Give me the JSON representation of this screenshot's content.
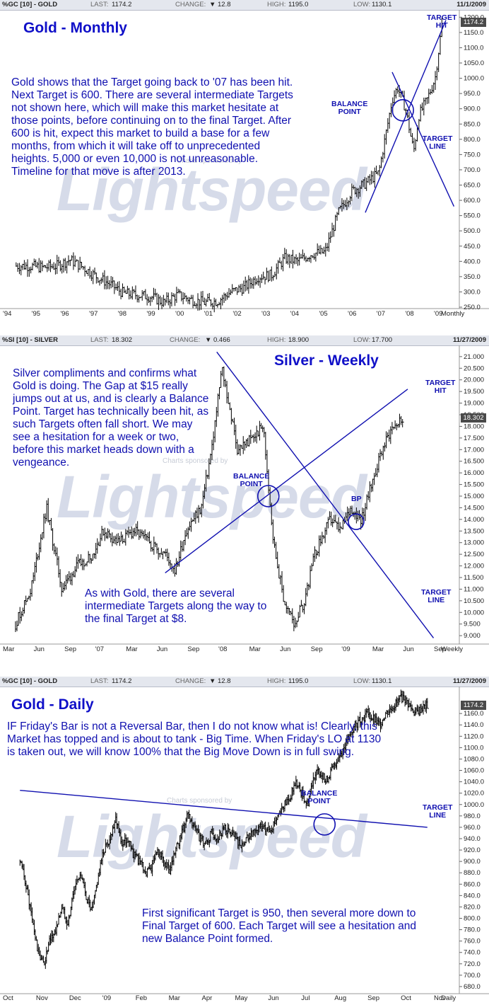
{
  "colors": {
    "annotation": "#1010b0",
    "title": "#1010c8",
    "header_bg": "#e4e7ee",
    "price_bar": "#000000",
    "watermark": "#d6dbe9"
  },
  "watermark": "Lightspeed",
  "watermark_sub": "Charts sponsored by",
  "panels": [
    {
      "id": "gold-monthly",
      "header": {
        "symbol": "%GC [10] - GOLD",
        "last_label": "LAST:",
        "last": "1174.2",
        "change_label": "CHANGE:",
        "change": "12.8",
        "high_label": "HIGH:",
        "high": "1195.0",
        "low_label": "LOW:",
        "low": "1130.1",
        "date": "11/1/2009"
      },
      "title": "Gold - Monthly",
      "note": "Gold shows that the Target going back to '07 has been hit.  Next Target is 600.  There are several intermediate Targets not shown here, which will make this market hesitate at those points, before continuing on to the final Target.  After 600 is hit, expect this market to build a base for a few months, from which it will take off to unprecedented heights.  5,000 or even 10,000 is not unreasonable.  Timeline for that move is after 2013.",
      "annotations": {
        "target_hit": "TARGET\nHIT",
        "balance_point": "BALANCE\nPOINT",
        "target_line": "TARGET\nLINE"
      },
      "last_box": "1174.2"
    },
    {
      "id": "silver-weekly",
      "header": {
        "symbol": "%SI [10] - SILVER",
        "last_label": "LAST:",
        "last": "18.302",
        "change_label": "CHANGE:",
        "change": "0.466",
        "high_label": "HIGH:",
        "high": "18.900",
        "low_label": "LOW:",
        "low": "17.700",
        "date": "11/27/2009"
      },
      "title": "Silver - Weekly",
      "note": "Silver compliments and  confirms what Gold is doing.  The Gap at $15 really jumps out at us, and is clearly a Balance Point.  Target has technically been hit, as such Targets often fall short.  We may see a hesitation for a week or two, before this market heads down with a vengeance.",
      "note2": "As with Gold, there are several intermediate Targets along the way to the final Target at $8.",
      "annotations": {
        "target_hit": "TARGET\nHIT",
        "balance_point": "BALANCE\nPOINT",
        "bp": "BP",
        "target_line": "TARGET\nLINE"
      },
      "last_box": "18.302"
    },
    {
      "id": "gold-daily",
      "header": {
        "symbol": "%GC [10] - GOLD",
        "last_label": "LAST:",
        "last": "1174.2",
        "change_label": "CHANGE:",
        "change": "12.8",
        "high_label": "HIGH:",
        "high": "1195.0",
        "low_label": "LOW:",
        "low": "1130.1",
        "date": "11/27/2009"
      },
      "title": "Gold - Daily",
      "note": "IF Friday's Bar is not a Reversal Bar, then I do not know what is! Clearly, this Market has topped and is about to tank - Big Time. When Friday's LO at 1130 is taken out, we will know 100% that the Big Move Down is in full swing.",
      "note2": "First significant Target is 950, then several more down to Final Target of 600.  Each Target will see a hesitation and new Balance Point formed.",
      "annotations": {
        "balance_point": "BALANCE\nPOINT",
        "target_line": "TARGET\nLINE"
      },
      "last_box": "1174.2"
    }
  ],
  "chart_data": [
    {
      "type": "bar",
      "title": "Gold - Monthly",
      "periodicity": "Monthly",
      "x_ticks": [
        "'94",
        "'95",
        "'96",
        "'97",
        "'98",
        "'99",
        "'00",
        "'01",
        "'02",
        "'03",
        "'04",
        "'05",
        "'06",
        "'07",
        "'08",
        "'09"
      ],
      "y_ticks": [
        250,
        300,
        350,
        400,
        450,
        500,
        550,
        600,
        650,
        700,
        750,
        800,
        850,
        900,
        950,
        1000,
        1050,
        1100,
        1150,
        1200
      ],
      "ylim": [
        250,
        1210
      ],
      "x": [
        1994.0,
        1994.5,
        1995.0,
        1995.5,
        1996.0,
        1996.5,
        1997.0,
        1997.5,
        1998.0,
        1998.5,
        1999.0,
        1999.5,
        2000.0,
        2000.5,
        2001.0,
        2001.5,
        2002.0,
        2002.5,
        2003.0,
        2003.5,
        2004.0,
        2004.5,
        2005.0,
        2005.5,
        2006.0,
        2006.5,
        2007.0,
        2007.5,
        2008.0,
        2008.2,
        2008.5,
        2008.8,
        2009.0,
        2009.3,
        2009.6,
        2009.85
      ],
      "close": [
        385,
        385,
        380,
        385,
        405,
        380,
        350,
        325,
        295,
        290,
        285,
        265,
        290,
        275,
        265,
        270,
        300,
        315,
        350,
        355,
        410,
        400,
        425,
        430,
        560,
        630,
        655,
        690,
        930,
        970,
        900,
        760,
        880,
        930,
        1000,
        1174
      ],
      "series": [
        {
          "name": "target-line-down",
          "points": [
            [
              2008.0,
              1020
            ],
            [
              2010.3,
              580
            ]
          ]
        },
        {
          "name": "target-line-up",
          "points": [
            [
              2007.0,
              560
            ],
            [
              2010.0,
              1190
            ]
          ]
        }
      ],
      "balance_point": {
        "x": 2008.4,
        "y": 895
      },
      "target_hit": 1190
    },
    {
      "type": "bar",
      "title": "Silver - Weekly",
      "periodicity": "Weekly",
      "x_ticks": [
        "Mar",
        "Jun",
        "Sep",
        "'07",
        "Mar",
        "Jun",
        "Sep",
        "'08",
        "Mar",
        "Jun",
        "Sep",
        "'09",
        "Mar",
        "Jun",
        "Sep"
      ],
      "y_ticks": [
        9.0,
        9.5,
        10.0,
        10.5,
        11.0,
        11.5,
        12.0,
        12.5,
        13.0,
        13.5,
        14.0,
        14.5,
        15.0,
        15.5,
        16.0,
        16.5,
        17.0,
        17.5,
        18.0,
        18.5,
        19.0,
        19.5,
        20.0,
        20.5,
        21.0
      ],
      "ylim": [
        8.7,
        21.3
      ],
      "x": [
        2006.15,
        2006.3,
        2006.45,
        2006.6,
        2006.75,
        2006.9,
        2007.0,
        2007.15,
        2007.3,
        2007.45,
        2007.6,
        2007.7,
        2007.8,
        2007.95,
        2008.05,
        2008.15,
        2008.3,
        2008.45,
        2008.55,
        2008.65,
        2008.75,
        2008.85,
        2008.95,
        2009.05,
        2009.2,
        2009.3,
        2009.4,
        2009.5,
        2009.6,
        2009.7,
        2009.8,
        2009.9
      ],
      "close": [
        9.5,
        11.0,
        14.5,
        11.0,
        12.0,
        12.5,
        13.5,
        13.0,
        13.5,
        13.0,
        12.5,
        11.8,
        13.5,
        14.5,
        17.0,
        20.5,
        17.0,
        17.5,
        18.0,
        13.0,
        10.5,
        9.5,
        10.5,
        12.5,
        14.0,
        13.5,
        14.5,
        14.0,
        15.5,
        17.0,
        18.0,
        18.3
      ],
      "series": [
        {
          "name": "target-line-down",
          "points": [
            [
              2008.1,
              21.2
            ],
            [
              2010.2,
              8.9
            ]
          ]
        },
        {
          "name": "target-line-up",
          "points": [
            [
              2007.6,
              11.7
            ],
            [
              2009.95,
              19.6
            ]
          ]
        }
      ],
      "balance_point": {
        "x": 2008.6,
        "y": 15.0
      },
      "bp": {
        "x": 2009.45,
        "y": 13.9
      },
      "target_hit": 19.6,
      "final_target": 8.0
    },
    {
      "type": "bar",
      "title": "Gold - Daily",
      "periodicity": "Daily",
      "x_ticks": [
        "Oct",
        "Nov",
        "Dec",
        "'09",
        "Feb",
        "Mar",
        "Apr",
        "May",
        "Jun",
        "Jul",
        "Aug",
        "Sep",
        "Oct",
        "Nov"
      ],
      "y_ticks": [
        680,
        700,
        720,
        740,
        760,
        780,
        800,
        820,
        840,
        860,
        880,
        900,
        920,
        940,
        960,
        980,
        1000,
        1020,
        1040,
        1060,
        1080,
        1100,
        1120,
        1140,
        1160
      ],
      "ylim": [
        670,
        1200
      ],
      "x": [
        0,
        6,
        12,
        18,
        24,
        30,
        36,
        42,
        48,
        54,
        60,
        66,
        72,
        78,
        84,
        90,
        96,
        102,
        108,
        114,
        120,
        126,
        132,
        138,
        144,
        150,
        156,
        162,
        168,
        174,
        180,
        186,
        192,
        198,
        204,
        210,
        216,
        222,
        228,
        234,
        240,
        246,
        252,
        258,
        264,
        270,
        276,
        282,
        288,
        294,
        300,
        306,
        312,
        318,
        324,
        330,
        336,
        342,
        348,
        354,
        360,
        366,
        372,
        378,
        384,
        390,
        396,
        402,
        408
      ],
      "close": [
        900,
        860,
        800,
        740,
        720,
        760,
        780,
        820,
        790,
        850,
        880,
        840,
        810,
        870,
        920,
        940,
        980,
        930,
        940,
        910,
        900,
        880,
        890,
        920,
        900,
        880,
        920,
        950,
        980,
        960,
        940,
        930,
        950,
        940,
        960,
        950,
        940,
        930,
        940,
        950,
        960,
        955,
        960,
        980,
        1000,
        1010,
        1040,
        1020,
        1000,
        1050,
        1060,
        1040,
        1060,
        1080,
        1100,
        1120,
        1140,
        1150,
        1160,
        1150,
        1140,
        1160,
        1170,
        1180,
        1190,
        1174,
        1160,
        1170,
        1174
      ],
      "series": [
        {
          "name": "target-line",
          "points": [
            [
              0,
              1025
            ],
            [
              408,
              960
            ]
          ]
        }
      ],
      "balance_point": {
        "x": 305,
        "y": 965
      },
      "final_target": 600,
      "first_target": 950,
      "friday_low": 1130
    }
  ]
}
